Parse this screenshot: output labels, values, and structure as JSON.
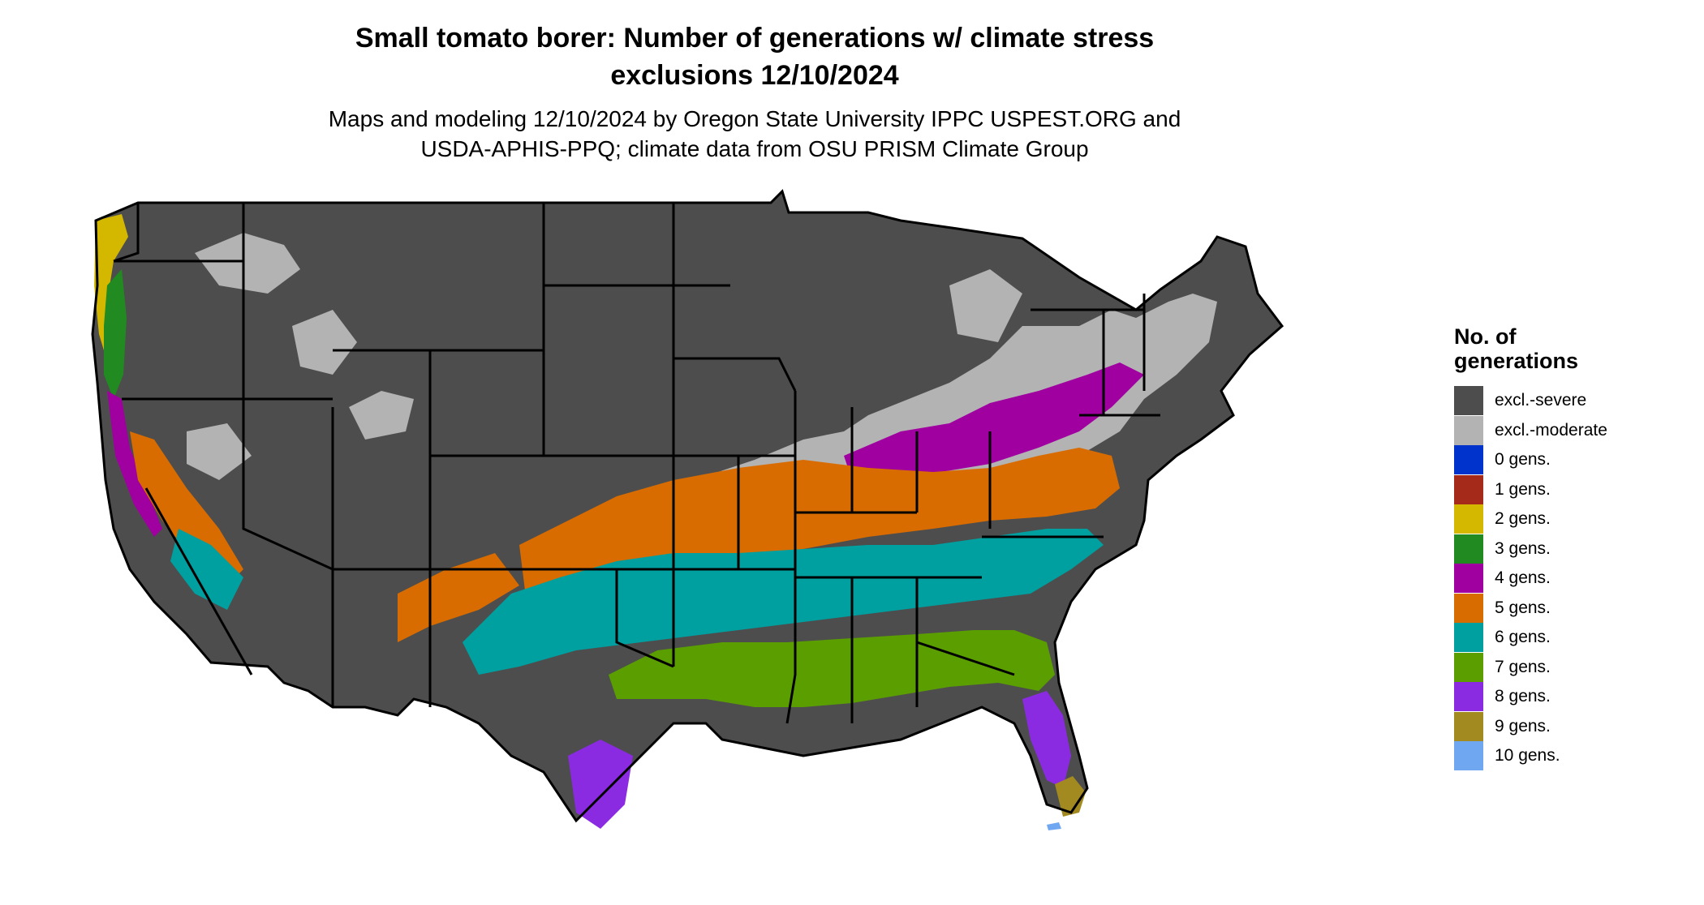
{
  "title_line1": "Small tomato borer: Number of generations w/ climate stress",
  "title_line2": "exclusions 12/10/2024",
  "subtitle_line1": "Maps and modeling 12/10/2024 by Oregon State University IPPC USPEST.ORG and",
  "subtitle_line2": "USDA-APHIS-PPQ; climate data from OSU PRISM Climate Group",
  "legend": {
    "title_line1": "No. of",
    "title_line2": "generations",
    "items": [
      {
        "label": "excl.-severe",
        "color": "#4d4d4d"
      },
      {
        "label": "excl.-moderate",
        "color": "#b3b3b3"
      },
      {
        "label": "0 gens.",
        "color": "#0033cc"
      },
      {
        "label": "1 gens.",
        "color": "#a52a1a"
      },
      {
        "label": "2 gens.",
        "color": "#d4b800"
      },
      {
        "label": "3 gens.",
        "color": "#218a21"
      },
      {
        "label": "4 gens.",
        "color": "#a000a0"
      },
      {
        "label": "5 gens.",
        "color": "#d96c00"
      },
      {
        "label": "6 gens.",
        "color": "#00a0a0"
      },
      {
        "label": "7 gens.",
        "color": "#5a9e00"
      },
      {
        "label": "8 gens.",
        "color": "#8a2be2"
      },
      {
        "label": "9 gens.",
        "color": "#a28a20"
      },
      {
        "label": "10 gens.",
        "color": "#6fa8f0"
      }
    ]
  }
}
